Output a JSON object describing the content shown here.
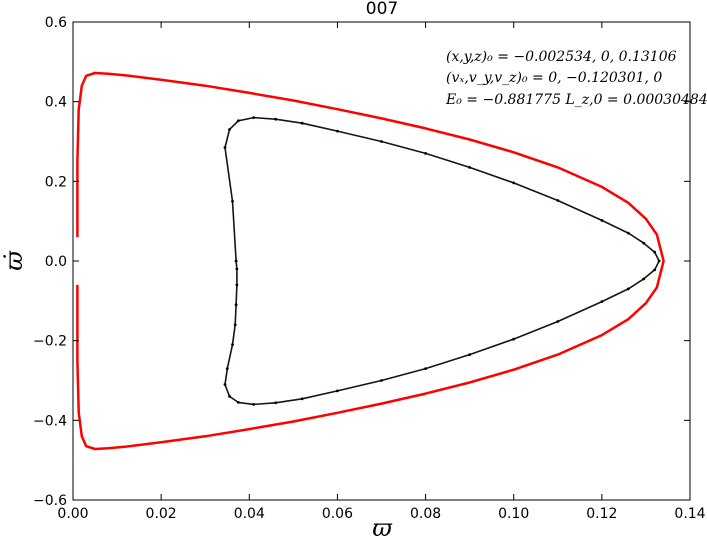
{
  "chart_data": {
    "type": "scatter",
    "title": "007",
    "xlabel": "ϖ",
    "ylabel": "ϖ̇",
    "xlim": [
      0.0,
      0.14
    ],
    "ylim": [
      -0.6,
      0.6
    ],
    "xticks": [
      "0.00",
      "0.02",
      "0.04",
      "0.06",
      "0.08",
      "0.10",
      "0.12",
      "0.14"
    ],
    "yticks": [
      "−0.6",
      "−0.4",
      "−0.2",
      "0.0",
      "0.2",
      "0.4",
      "0.6"
    ],
    "grid": false,
    "annotations": [
      "(x,y,z)₀ = −0.002534, 0, 0.13106",
      "(vₓ,v_y,v_z)₀ = 0, −0.120301, 0",
      "E₀ = −0.881775   L_z,0 = 0.000304843"
    ],
    "series": [
      {
        "style": "line",
        "color": "#ff0000",
        "x": [
          0.001,
          0.001,
          0.0013,
          0.002,
          0.003,
          0.005,
          0.008,
          0.012,
          0.02,
          0.03,
          0.04,
          0.05,
          0.06,
          0.07,
          0.08,
          0.09,
          0.1,
          0.11,
          0.12,
          0.126,
          0.13,
          0.1325,
          0.134,
          0.1325,
          0.13,
          0.126,
          0.12,
          0.11,
          0.1,
          0.09,
          0.08,
          0.07,
          0.06,
          0.05,
          0.04,
          0.03,
          0.02,
          0.012,
          0.008,
          0.005,
          0.003,
          0.002,
          0.0013,
          0.001,
          0.001
        ],
        "y": [
          0.06,
          0.25,
          0.38,
          0.44,
          0.465,
          0.472,
          0.47,
          0.466,
          0.455,
          0.44,
          0.422,
          0.403,
          0.381,
          0.358,
          0.333,
          0.305,
          0.273,
          0.235,
          0.186,
          0.146,
          0.106,
          0.066,
          0.0,
          -0.066,
          -0.106,
          -0.146,
          -0.186,
          -0.235,
          -0.273,
          -0.305,
          -0.333,
          -0.358,
          -0.381,
          -0.403,
          -0.422,
          -0.44,
          -0.455,
          -0.466,
          -0.47,
          -0.472,
          -0.465,
          -0.44,
          -0.38,
          -0.25,
          -0.06
        ]
      },
      {
        "style": "points",
        "color": "#000000",
        "x": [
          0.037,
          0.0362,
          0.0345,
          0.0355,
          0.0375,
          0.041,
          0.046,
          0.052,
          0.06,
          0.07,
          0.08,
          0.09,
          0.1,
          0.11,
          0.12,
          0.126,
          0.1295,
          0.132,
          0.133,
          0.132,
          0.1295,
          0.126,
          0.12,
          0.11,
          0.1,
          0.09,
          0.08,
          0.07,
          0.06,
          0.052,
          0.046,
          0.041,
          0.0375,
          0.0355,
          0.0345,
          0.035,
          0.0362,
          0.0368,
          0.037,
          0.0372,
          0.0372,
          0.037
        ],
        "y": [
          0.0,
          0.15,
          0.285,
          0.33,
          0.352,
          0.36,
          0.356,
          0.346,
          0.326,
          0.3,
          0.27,
          0.235,
          0.196,
          0.152,
          0.102,
          0.07,
          0.045,
          0.022,
          0.0,
          -0.022,
          -0.045,
          -0.07,
          -0.102,
          -0.152,
          -0.196,
          -0.235,
          -0.27,
          -0.3,
          -0.326,
          -0.346,
          -0.356,
          -0.36,
          -0.355,
          -0.34,
          -0.31,
          -0.27,
          -0.21,
          -0.16,
          -0.11,
          -0.06,
          -0.02,
          0.0
        ]
      }
    ]
  }
}
